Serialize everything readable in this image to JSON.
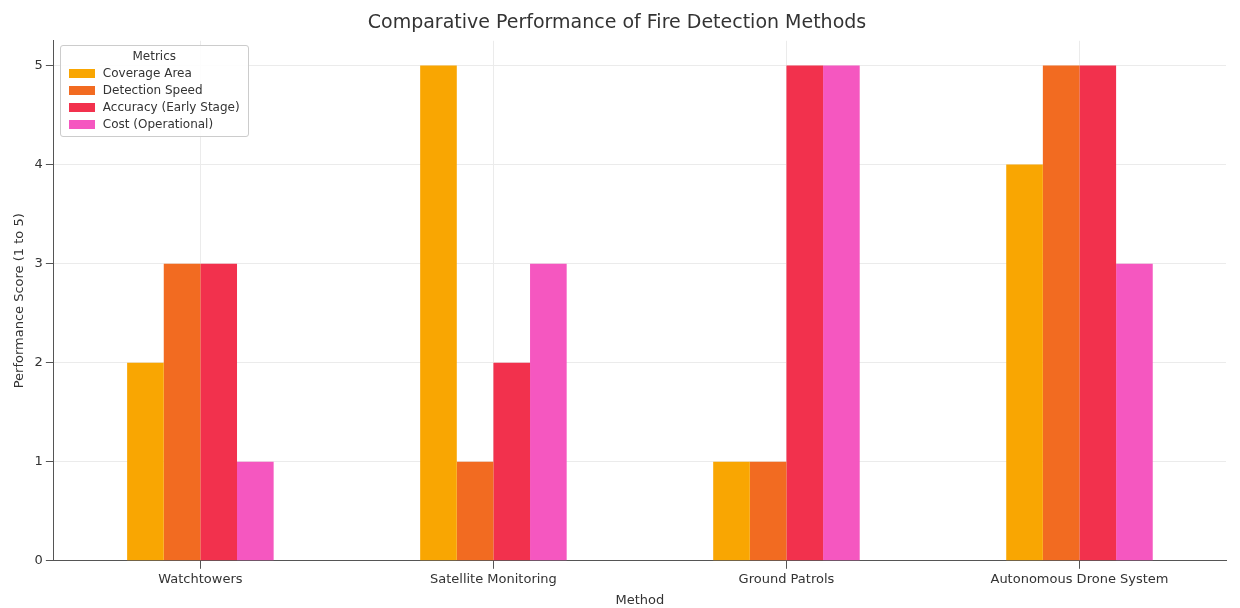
{
  "chart_data": {
    "type": "bar",
    "title": "Comparative Performance of Fire Detection Methods",
    "xlabel": "Method",
    "ylabel": "Performance Score (1 to 5)",
    "legend_title": "Metrics",
    "categories": [
      "Watchtowers",
      "Satellite Monitoring",
      "Ground Patrols",
      "Autonomous Drone System"
    ],
    "series": [
      {
        "name": "Coverage Area",
        "color": "#f9a602",
        "values": [
          2,
          5,
          1,
          4
        ]
      },
      {
        "name": "Detection Speed",
        "color": "#f26b21",
        "values": [
          3,
          1,
          1,
          5
        ]
      },
      {
        "name": "Accuracy (Early Stage)",
        "color": "#f2314d",
        "values": [
          3,
          2,
          5,
          5
        ]
      },
      {
        "name": "Cost (Operational)",
        "color": "#f557c0",
        "values": [
          1,
          3,
          5,
          3
        ]
      }
    ],
    "ylim": [
      0,
      5.25
    ],
    "yticks": [
      0,
      1,
      2,
      3,
      4,
      5
    ],
    "grid": true,
    "legend": "top left"
  }
}
